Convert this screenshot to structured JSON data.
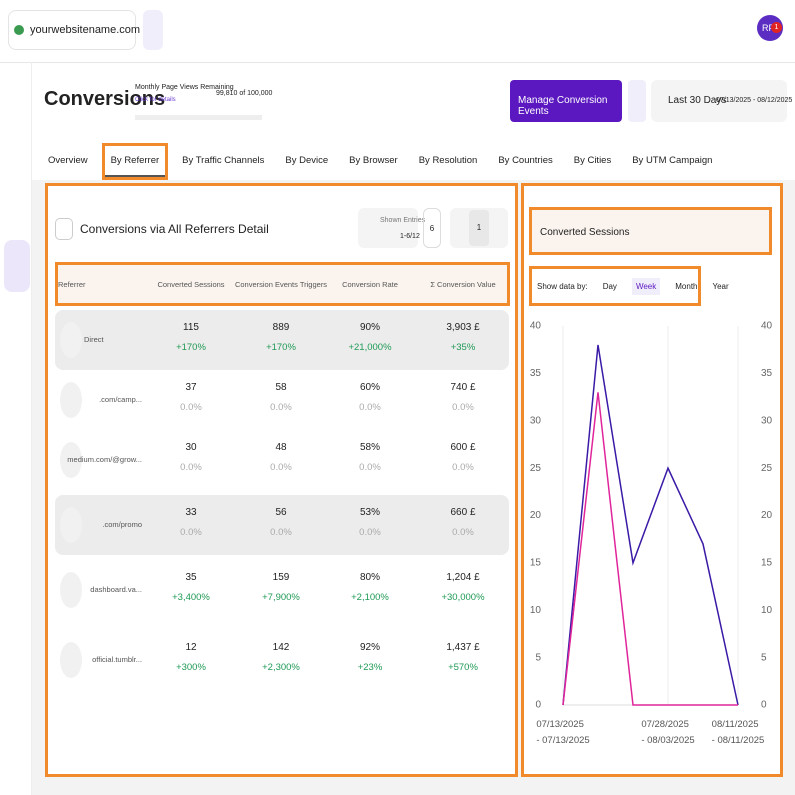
{
  "topbar": {
    "site": "yourwebsitename.com",
    "avatar": "RF",
    "badge": "1"
  },
  "header": {
    "title": "Conversions",
    "quota_label": "Monthly Page Views Remaining",
    "quota_value": "99,810 of 100,000",
    "quota_link": "Click for details",
    "button": "Manage Conversion Events",
    "range_label": "Last 30 Days",
    "range_dates": "07/13/2025 - 08/12/2025"
  },
  "tabs": [
    "Overview",
    "By Referrer",
    "By Traffic Channels",
    "By Device",
    "By Browser",
    "By Resolution",
    "By Countries",
    "By Cities",
    "By UTM Campaign"
  ],
  "table_card": {
    "title": "Conversions via All Referrers Detail",
    "entries_label": "Shown Entries",
    "entries_range": "1-6/12",
    "page_size": "6",
    "page": "1",
    "columns": [
      "Referrer",
      "Converted Sessions",
      "Conversion Events Triggers",
      "Conversion Rate",
      "Σ Conversion Value"
    ],
    "rows": [
      {
        "referrer": "Direct",
        "cells": [
          [
            "115",
            "+170%"
          ],
          [
            "889",
            "+170%"
          ],
          [
            "90%",
            "+21,000%"
          ],
          [
            "3,903 £",
            "+35%"
          ]
        ]
      },
      {
        "referrer": ".com/camp...",
        "cells": [
          [
            "37",
            "0.0%"
          ],
          [
            "58",
            "0.0%"
          ],
          [
            "60%",
            "0.0%"
          ],
          [
            "740 £",
            "0.0%"
          ]
        ]
      },
      {
        "referrer": "medium.com/@grow...",
        "cells": [
          [
            "30",
            "0.0%"
          ],
          [
            "48",
            "0.0%"
          ],
          [
            "58%",
            "0.0%"
          ],
          [
            "600 £",
            "0.0%"
          ]
        ]
      },
      {
        "referrer": ".com/promo",
        "cells": [
          [
            "33",
            "0.0%"
          ],
          [
            "56",
            "0.0%"
          ],
          [
            "53%",
            "0.0%"
          ],
          [
            "660 £",
            "0.0%"
          ]
        ]
      },
      {
        "referrer": "dashboard.va...",
        "cells": [
          [
            "35",
            "+3,400%"
          ],
          [
            "159",
            "+7,900%"
          ],
          [
            "80%",
            "+2,100%"
          ],
          [
            "1,204 £",
            "+30,000%"
          ]
        ]
      },
      {
        "referrer": "official.tumblr...",
        "cells": [
          [
            "12",
            "+300%"
          ],
          [
            "142",
            "+2,300%"
          ],
          [
            "92%",
            "+23%"
          ],
          [
            "1,437 £",
            "+570%"
          ]
        ]
      }
    ]
  },
  "chart_card": {
    "metric": "Converted Sessions",
    "show_by_label": "Show data by:",
    "periods": [
      "Day",
      "Week",
      "Month",
      "Year"
    ]
  },
  "chart_data": {
    "type": "line",
    "categories": [
      "07/13/2025\n- 07/13/2025",
      null,
      null,
      "07/28/2025\n- 08/03/2025",
      null,
      "08/11/2025\n- 08/11/2025"
    ],
    "series": [
      {
        "color": "#3a1aa6",
        "values": [
          0,
          38,
          15,
          25,
          17,
          0
        ]
      },
      {
        "color": "#e0259a",
        "values": [
          0,
          33,
          0,
          0,
          0,
          0
        ]
      }
    ],
    "ylim": [
      0,
      40
    ],
    "yticks": [
      0,
      5,
      10,
      15,
      20,
      25,
      30,
      35,
      40
    ],
    "y2lim": [
      0,
      40
    ],
    "y2ticks": [
      0,
      5,
      10,
      15,
      20,
      25,
      30,
      35,
      40
    ]
  }
}
